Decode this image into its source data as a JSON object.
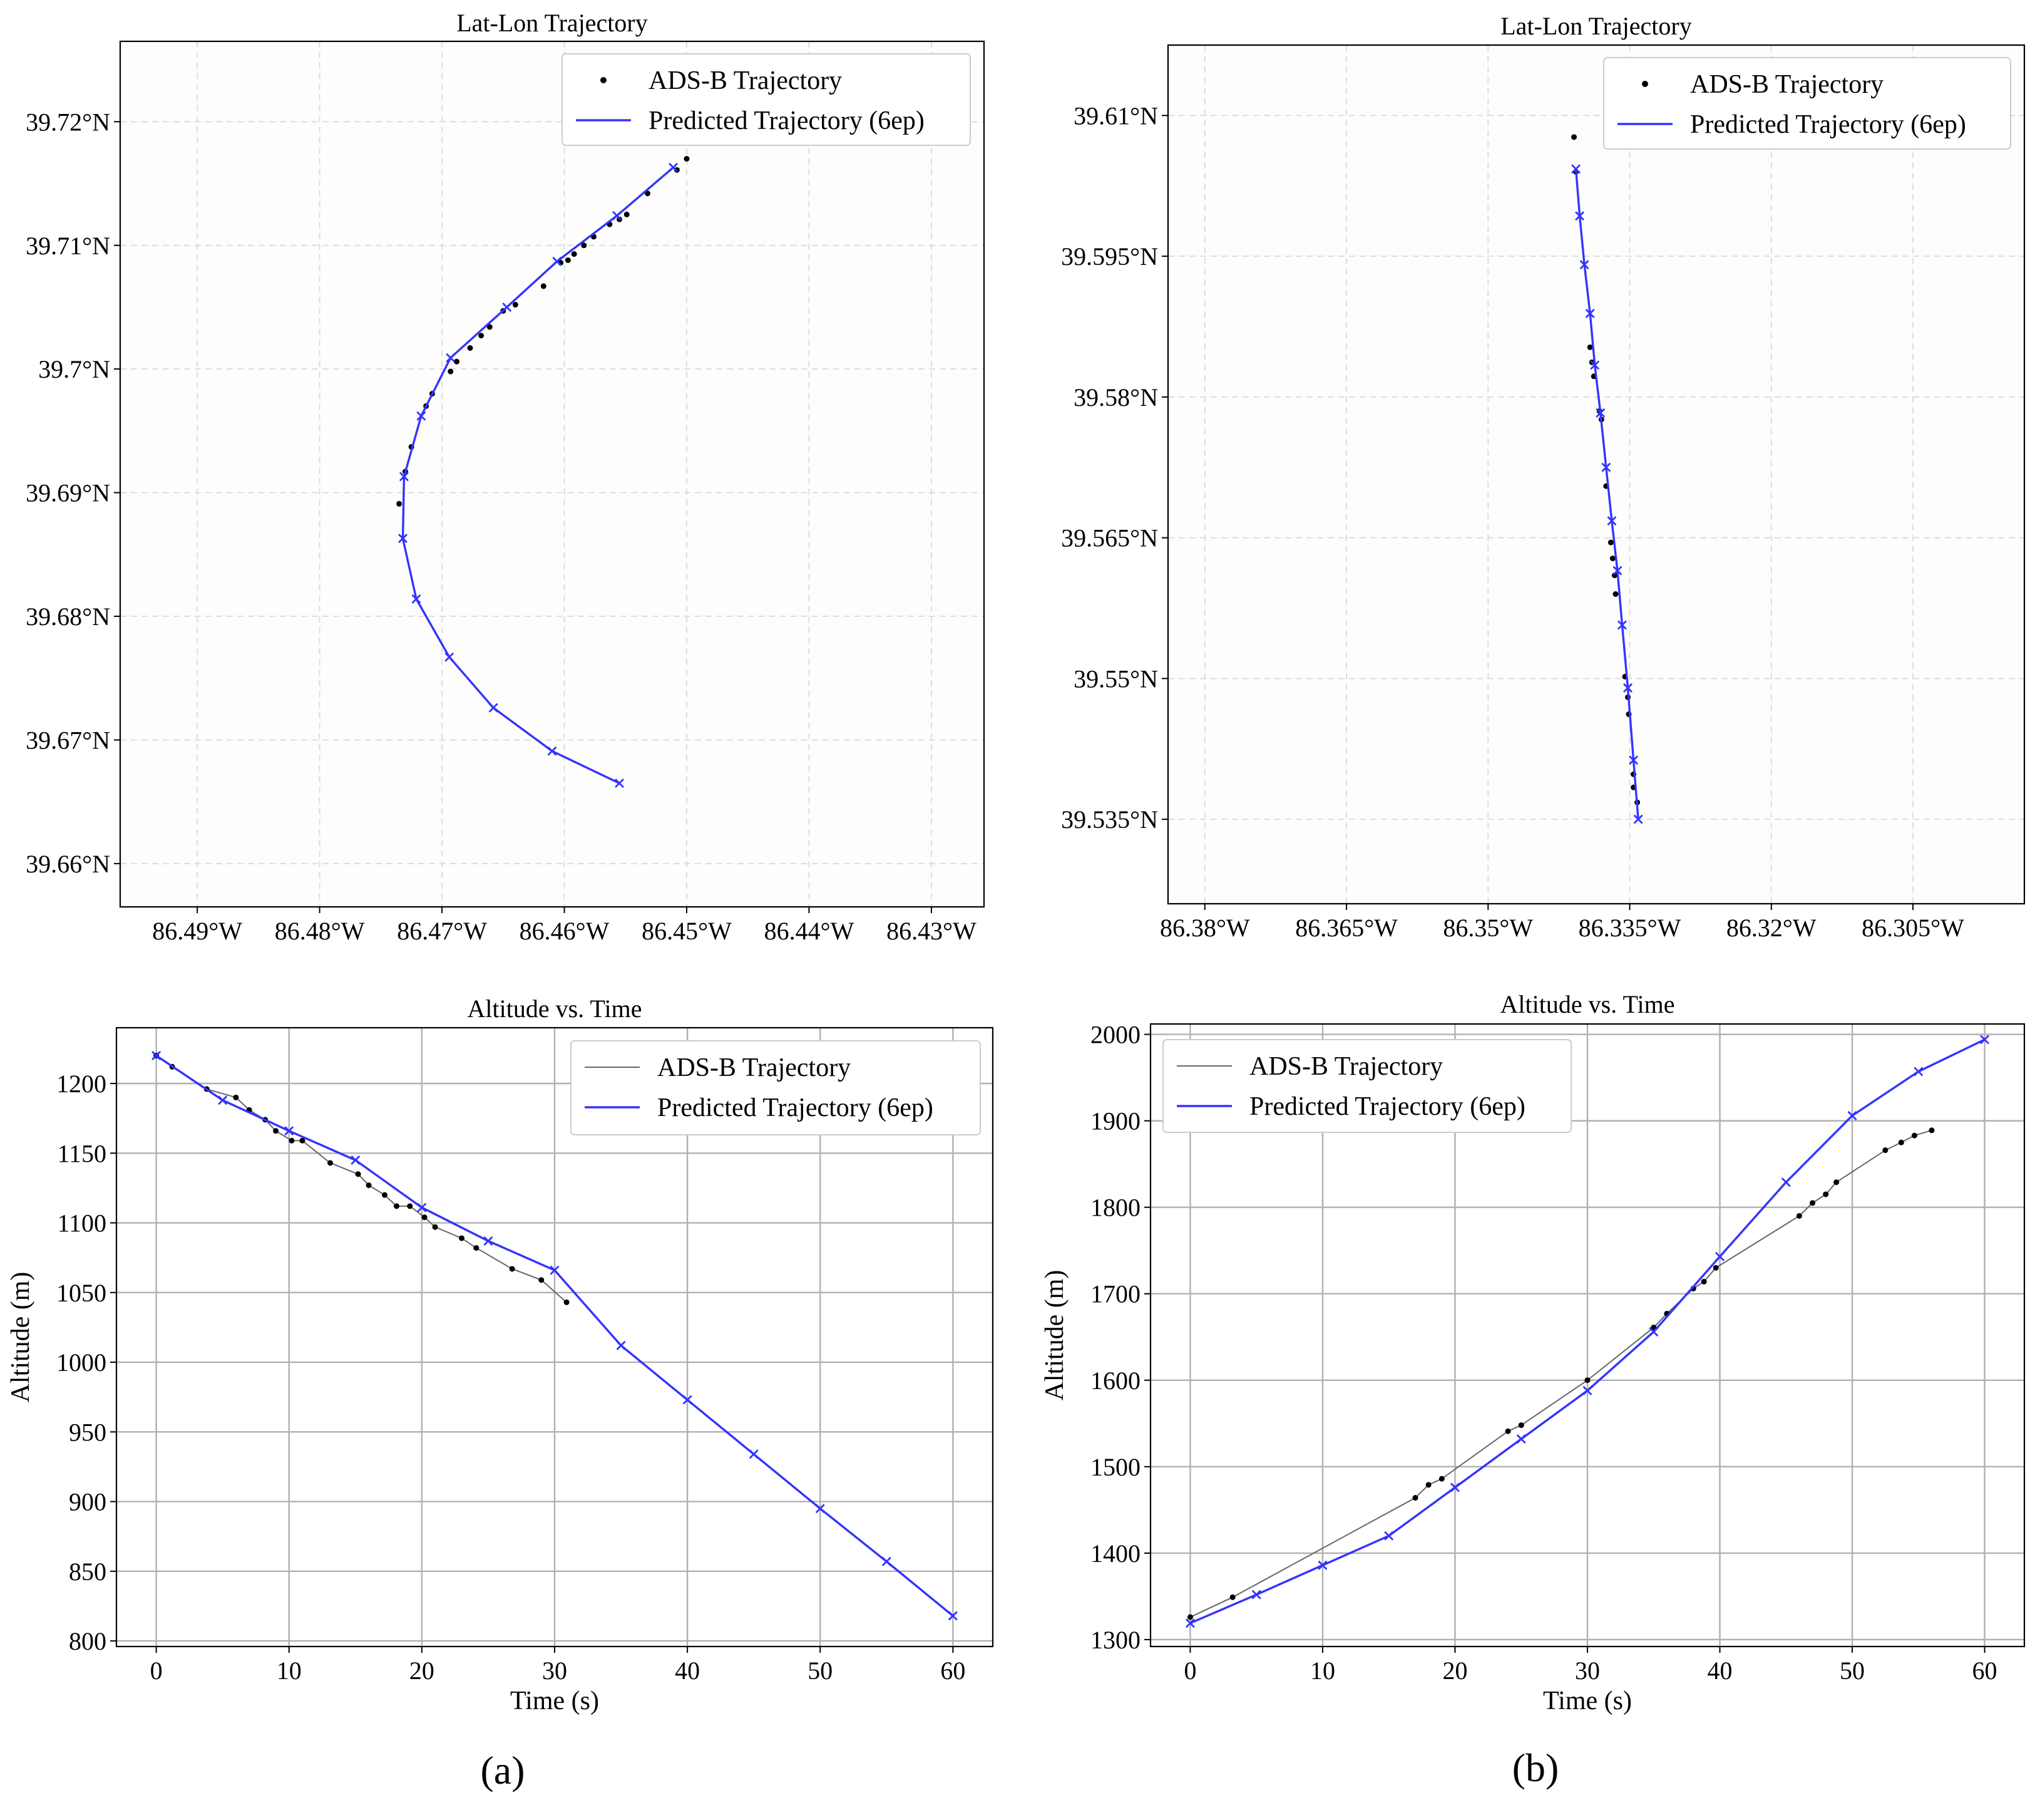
{
  "colors": {
    "ads": "#000000",
    "ads_line": "#666666",
    "pred": "#3333ff",
    "grid_dashed": "#dddddd",
    "grid_solid": "#b0b0b0",
    "map_bg": "#fdfdfb"
  },
  "panel_labels": [
    "(a)",
    "(b)"
  ],
  "chart_data": [
    {
      "id": "a_map",
      "type": "scatter",
      "title": "Lat-Lon Trajectory",
      "xlabel": "",
      "ylabel": "",
      "xlim": [
        -86.4963,
        -86.4257
      ],
      "ylim": [
        39.6565,
        39.7265
      ],
      "xticks": [
        -86.49,
        -86.48,
        -86.47,
        -86.46,
        -86.45,
        -86.44,
        -86.43
      ],
      "xticklabels": [
        "86.49°W",
        "86.48°W",
        "86.47°W",
        "86.46°W",
        "86.45°W",
        "86.44°W",
        "86.43°W"
      ],
      "yticks": [
        39.66,
        39.67,
        39.68,
        39.69,
        39.7,
        39.71,
        39.72
      ],
      "yticklabels": [
        "39.66°N",
        "39.67°N",
        "39.68°N",
        "39.69°N",
        "39.7°N",
        "39.71°N",
        "39.72°N"
      ],
      "grid": "dashed",
      "legend": "top-right",
      "series": [
        {
          "name": "ADS-B Trajectory",
          "kind": "points",
          "points": [
            [
              -86.45,
              39.717
            ],
            [
              -86.4508,
              39.7161
            ],
            [
              -86.4532,
              39.7142
            ],
            [
              -86.4549,
              39.7125
            ],
            [
              -86.4555,
              39.7121
            ],
            [
              -86.4563,
              39.7117
            ],
            [
              -86.4576,
              39.7107
            ],
            [
              -86.4584,
              39.71
            ],
            [
              -86.4592,
              39.7093
            ],
            [
              -86.4597,
              39.7088
            ],
            [
              -86.4603,
              39.7086
            ],
            [
              -86.4617,
              39.7067
            ],
            [
              -86.464,
              39.7052
            ],
            [
              -86.465,
              39.7047
            ],
            [
              -86.4661,
              39.7034
            ],
            [
              -86.4668,
              39.7027
            ],
            [
              -86.4677,
              39.7017
            ],
            [
              -86.4688,
              39.7006
            ],
            [
              -86.4693,
              39.6998
            ],
            [
              -86.4708,
              39.698
            ],
            [
              -86.4713,
              39.697
            ],
            [
              -86.4725,
              39.6937
            ],
            [
              -86.473,
              39.6917
            ],
            [
              -86.4735,
              39.6891
            ]
          ]
        },
        {
          "name": "Predicted Trajectory (6ep)",
          "kind": "line-x",
          "points": [
            [
              -86.4511,
              39.7163
            ],
            [
              -86.4557,
              39.7124
            ],
            [
              -86.4606,
              39.7087
            ],
            [
              -86.4647,
              39.705
            ],
            [
              -86.4693,
              39.7009
            ],
            [
              -86.4717,
              39.6962
            ],
            [
              -86.4731,
              39.6913
            ],
            [
              -86.4732,
              39.6863
            ],
            [
              -86.4721,
              39.6814
            ],
            [
              -86.4694,
              39.6767
            ],
            [
              -86.4658,
              39.6726
            ],
            [
              -86.461,
              39.6691
            ],
            [
              -86.4555,
              39.6665
            ]
          ]
        }
      ]
    },
    {
      "id": "b_map",
      "type": "scatter",
      "title": "Lat-Lon Trajectory",
      "xlabel": "",
      "ylabel": "",
      "xlim": [
        -86.3839,
        -86.2932
      ],
      "ylim": [
        39.526,
        39.6175
      ],
      "xticks": [
        -86.38,
        -86.365,
        -86.35,
        -86.335,
        -86.32,
        -86.305
      ],
      "xticklabels": [
        "86.38°W",
        "86.365°W",
        "86.35°W",
        "86.335°W",
        "86.32°W",
        "86.305°W"
      ],
      "yticks": [
        39.535,
        39.55,
        39.565,
        39.58,
        39.595,
        39.61
      ],
      "yticklabels": [
        "39.535°N",
        "39.55°N",
        "39.565°N",
        "39.58°N",
        "39.595°N",
        "39.61°N"
      ],
      "grid": "dashed",
      "legend": "top-right",
      "series": [
        {
          "name": "ADS-B Trajectory",
          "kind": "points",
          "points": [
            [
              -86.3409,
              39.6077
            ],
            [
              -86.3407,
              39.604
            ],
            [
              -86.3392,
              39.5853
            ],
            [
              -86.339,
              39.5837
            ],
            [
              -86.3388,
              39.5822
            ],
            [
              -86.3382,
              39.5785
            ],
            [
              -86.338,
              39.5776
            ],
            [
              -86.3375,
              39.5705
            ],
            [
              -86.337,
              39.5645
            ],
            [
              -86.3368,
              39.5628
            ],
            [
              -86.3366,
              39.561
            ],
            [
              -86.3365,
              39.559
            ],
            [
              -86.3355,
              39.5502
            ],
            [
              -86.3352,
              39.548
            ],
            [
              -86.3351,
              39.5462
            ],
            [
              -86.3346,
              39.5398
            ],
            [
              -86.3346,
              39.5384
            ],
            [
              -86.3342,
              39.5368
            ]
          ]
        },
        {
          "name": "Predicted Trajectory (6ep)",
          "kind": "line-x",
          "points": [
            [
              -86.3407,
              39.6043
            ],
            [
              -86.3403,
              39.5993
            ],
            [
              -86.3398,
              39.5941
            ],
            [
              -86.3392,
              39.5889
            ],
            [
              -86.3387,
              39.5834
            ],
            [
              -86.3381,
              39.5783
            ],
            [
              -86.3375,
              39.5725
            ],
            [
              -86.3369,
              39.5668
            ],
            [
              -86.3363,
              39.5615
            ],
            [
              -86.3358,
              39.5557
            ],
            [
              -86.3352,
              39.549
            ],
            [
              -86.3346,
              39.5413
            ],
            [
              -86.3341,
              39.535
            ]
          ]
        }
      ]
    },
    {
      "id": "a_alt",
      "type": "line",
      "title": "Altitude vs. Time",
      "xlabel": "Time (s)",
      "ylabel": "Altitude (m)",
      "xlim": [
        -3,
        63
      ],
      "ylim": [
        796,
        1240
      ],
      "xticks": [
        0,
        10,
        20,
        30,
        40,
        50,
        60
      ],
      "yticks": [
        800,
        850,
        900,
        950,
        1000,
        1050,
        1100,
        1150,
        1200
      ],
      "grid": "solid",
      "legend": "top-right",
      "series": [
        {
          "name": "ADS-B Trajectory",
          "kind": "line-dots",
          "points": [
            [
              0,
              1220
            ],
            [
              1.2,
              1212
            ],
            [
              3.8,
              1196
            ],
            [
              6,
              1190
            ],
            [
              7,
              1181
            ],
            [
              8.2,
              1174
            ],
            [
              9,
              1166
            ],
            [
              10.2,
              1159
            ],
            [
              11,
              1159
            ],
            [
              13.1,
              1143
            ],
            [
              15.2,
              1135
            ],
            [
              16,
              1127
            ],
            [
              17.2,
              1120
            ],
            [
              18.1,
              1112
            ],
            [
              19.1,
              1112
            ],
            [
              20.2,
              1104
            ],
            [
              21,
              1097
            ],
            [
              23,
              1089
            ],
            [
              24.1,
              1082
            ],
            [
              26.8,
              1067
            ],
            [
              29,
              1059
            ],
            [
              30.9,
              1043
            ]
          ]
        },
        {
          "name": "Predicted Trajectory (6ep)",
          "kind": "line-x",
          "points": [
            [
              0,
              1220
            ],
            [
              5,
              1188
            ],
            [
              10,
              1166
            ],
            [
              15,
              1145
            ],
            [
              20,
              1111
            ],
            [
              25,
              1087
            ],
            [
              30,
              1066
            ],
            [
              35,
              1012
            ],
            [
              40,
              973
            ],
            [
              45,
              934
            ],
            [
              50,
              895
            ],
            [
              55,
              857
            ],
            [
              60,
              818
            ]
          ]
        }
      ]
    },
    {
      "id": "b_alt",
      "type": "line",
      "title": "Altitude vs. Time",
      "xlabel": "Time (s)",
      "ylabel": "Altitude (m)",
      "xlim": [
        -3,
        63
      ],
      "ylim": [
        1292,
        2012
      ],
      "xticks": [
        0,
        10,
        20,
        30,
        40,
        50,
        60
      ],
      "yticks": [
        1300,
        1400,
        1500,
        1600,
        1700,
        1800,
        1900,
        2000
      ],
      "grid": "solid",
      "legend": "top-left",
      "series": [
        {
          "name": "ADS-B Trajectory",
          "kind": "line-dots",
          "points": [
            [
              0,
              1326
            ],
            [
              3.2,
              1349
            ],
            [
              17,
              1464
            ],
            [
              18,
              1479
            ],
            [
              19,
              1486
            ],
            [
              24,
              1541
            ],
            [
              25,
              1548
            ],
            [
              30,
              1600
            ],
            [
              35,
              1661
            ],
            [
              36,
              1677
            ],
            [
              38,
              1706
            ],
            [
              38.8,
              1714
            ],
            [
              39.7,
              1730
            ],
            [
              46,
              1790
            ],
            [
              47,
              1805
            ],
            [
              48,
              1815
            ],
            [
              48.8,
              1829
            ],
            [
              52.5,
              1866
            ],
            [
              53.7,
              1875
            ],
            [
              54.7,
              1883
            ],
            [
              56,
              1889
            ]
          ]
        },
        {
          "name": "Predicted Trajectory (6ep)",
          "kind": "line-x",
          "points": [
            [
              0,
              1319
            ],
            [
              5,
              1352
            ],
            [
              10,
              1386
            ],
            [
              15,
              1420
            ],
            [
              20,
              1476
            ],
            [
              25,
              1532
            ],
            [
              30,
              1588
            ],
            [
              35,
              1656
            ],
            [
              40,
              1743
            ],
            [
              45,
              1829
            ],
            [
              50,
              1906
            ],
            [
              55,
              1957
            ],
            [
              60,
              1994
            ]
          ]
        }
      ]
    }
  ]
}
